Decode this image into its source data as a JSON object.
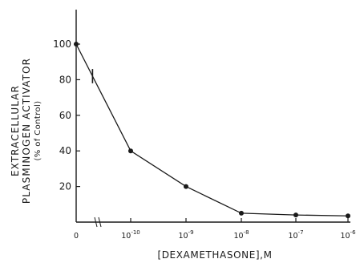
{
  "chart_data": {
    "type": "line",
    "x_tick_labels": [
      {
        "base": "0",
        "exp": ""
      },
      {
        "base": "10",
        "exp": "-10"
      },
      {
        "base": "10",
        "exp": "-9"
      },
      {
        "base": "10",
        "exp": "-8"
      },
      {
        "base": "10",
        "exp": "-7"
      },
      {
        "base": "10",
        "exp": "-6"
      }
    ],
    "x_scale": "log (dose), with 0 as control",
    "xlabel": "[DEXAMETHASONE],M",
    "ylabel": {
      "line1": "EXTRACELLULAR",
      "line2": "PLASMINOGEN ACTIVATOR",
      "line3": "(% of Control)"
    },
    "yticks": [
      20,
      40,
      60,
      80,
      100
    ],
    "ylim": [
      0,
      120
    ],
    "series": [
      {
        "points": [
          {
            "x": "0",
            "y": 100
          },
          {
            "x": "1e-10",
            "y": 40
          },
          {
            "x": "1e-9",
            "y": 20
          },
          {
            "x": "1e-8",
            "y": 5
          },
          {
            "x": "1e-7",
            "y": 4
          },
          {
            "x": "1e-6",
            "y": 3.5
          }
        ],
        "error_bars": [
          {
            "y_low": 78,
            "y_high": 86
          }
        ]
      }
    ],
    "grid": false,
    "legend": "none",
    "colors": {
      "ink": "#1a1a1a",
      "background": "#ffffff"
    }
  }
}
